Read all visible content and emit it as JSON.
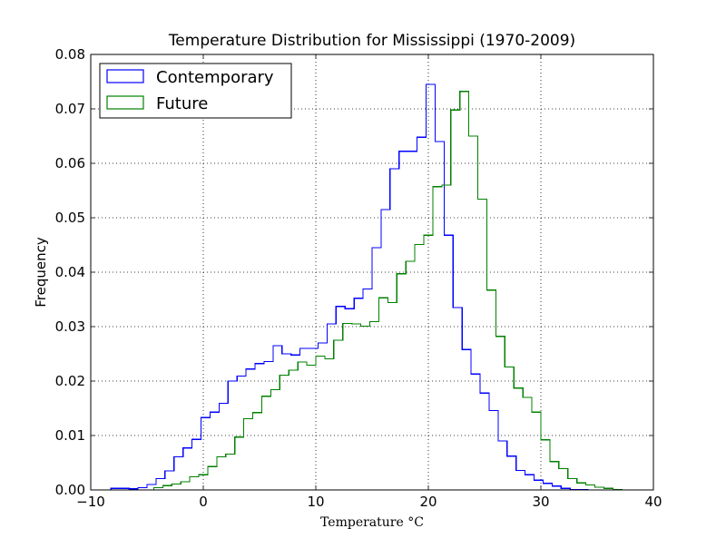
{
  "chart_data": {
    "type": "histogram",
    "title": "Temperature Distribution for Mississippi (1970-2009)",
    "xlabel": "Temperature  °C",
    "ylabel": "Frequency",
    "xlim": [
      -10,
      40
    ],
    "ylim": [
      0,
      0.08
    ],
    "xticks": [
      -10,
      0,
      10,
      20,
      30,
      40
    ],
    "xtick_labels": [
      "−10",
      "0",
      "10",
      "20",
      "30",
      "40"
    ],
    "yticks": [
      0.0,
      0.01,
      0.02,
      0.03,
      0.04,
      0.05,
      0.06,
      0.07,
      0.08
    ],
    "ytick_labels": [
      "0.00",
      "0.01",
      "0.02",
      "0.03",
      "0.04",
      "0.05",
      "0.06",
      "0.07",
      "0.08"
    ],
    "grid": true,
    "legend_position": "top-left",
    "series": [
      {
        "name": "Contemporary",
        "color": "#0000ff",
        "bin_edges": [
          -8.2,
          -7.4,
          -6.6,
          -5.8,
          -5.0,
          -4.2,
          -3.4,
          -2.6,
          -1.8,
          -1.0,
          -0.2,
          0.6,
          1.4,
          2.2,
          3.0,
          3.8,
          4.6,
          5.4,
          6.2,
          7.0,
          7.8,
          8.6,
          9.4,
          10.2,
          11.0,
          11.8,
          12.6,
          13.4,
          14.2,
          15.0,
          15.8,
          16.6,
          17.4,
          18.2,
          19.0,
          19.8,
          20.6,
          21.4,
          22.2,
          23.0,
          23.8,
          24.6,
          25.4,
          26.2,
          27.0,
          27.8,
          28.6,
          29.4,
          30.2,
          31.0,
          31.8,
          32.6,
          33.4,
          34.2
        ],
        "frequencies": [
          0.0003,
          0.0003,
          0.0002,
          0.0004,
          0.001,
          0.0021,
          0.0035,
          0.0061,
          0.0077,
          0.0093,
          0.0133,
          0.0143,
          0.0159,
          0.02,
          0.0209,
          0.0222,
          0.0232,
          0.0236,
          0.0265,
          0.025,
          0.0248,
          0.026,
          0.026,
          0.027,
          0.0305,
          0.0337,
          0.0333,
          0.0352,
          0.0369,
          0.0445,
          0.0515,
          0.059,
          0.0622,
          0.0622,
          0.0648,
          0.0745,
          0.064,
          0.0468,
          0.0335,
          0.0258,
          0.0213,
          0.0178,
          0.0146,
          0.009,
          0.0062,
          0.0036,
          0.0028,
          0.0018,
          0.0012,
          0.0007,
          0.0003,
          0.0001,
          0.0001
        ]
      },
      {
        "name": "Future",
        "color": "#008000",
        "bin_edges": [
          -4.4,
          -3.6,
          -2.8,
          -2.0,
          -1.2,
          -0.4,
          0.4,
          1.2,
          2.0,
          2.8,
          3.6,
          4.4,
          5.2,
          6.0,
          6.8,
          7.6,
          8.4,
          9.2,
          10.0,
          10.8,
          11.6,
          12.4,
          13.2,
          14.0,
          14.8,
          15.6,
          16.4,
          17.2,
          18.0,
          18.8,
          19.6,
          20.4,
          21.2,
          22.0,
          22.8,
          23.6,
          24.4,
          25.2,
          26.0,
          26.8,
          27.6,
          28.4,
          29.2,
          30.0,
          30.8,
          31.6,
          32.4,
          33.2,
          34.0,
          34.8,
          35.6,
          36.4,
          37.2
        ],
        "frequencies": [
          0.0004,
          0.0008,
          0.0011,
          0.0015,
          0.0024,
          0.0028,
          0.0043,
          0.0061,
          0.0066,
          0.0097,
          0.0131,
          0.0142,
          0.0172,
          0.0184,
          0.0211,
          0.022,
          0.0235,
          0.0229,
          0.0246,
          0.0241,
          0.0275,
          0.0306,
          0.0305,
          0.0301,
          0.0309,
          0.0353,
          0.0344,
          0.0397,
          0.042,
          0.0451,
          0.0468,
          0.0557,
          0.056,
          0.0698,
          0.0732,
          0.065,
          0.0534,
          0.0367,
          0.0282,
          0.0226,
          0.0187,
          0.017,
          0.0143,
          0.0092,
          0.0052,
          0.0039,
          0.0021,
          0.0013,
          0.0009,
          0.0005,
          0.0003,
          0.0001
        ]
      }
    ]
  }
}
